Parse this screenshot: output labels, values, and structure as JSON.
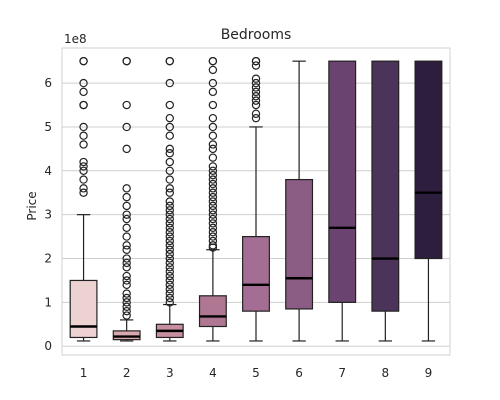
{
  "chart_data": {
    "type": "box",
    "title": "Bedrooms",
    "xlabel": "",
    "ylabel": "Price",
    "y_multiplier_label": "1e8",
    "y_unit_scale": 100000000,
    "ylim": [
      -0.2,
      6.8
    ],
    "yticks": [
      0,
      1,
      2,
      3,
      4,
      5,
      6
    ],
    "grid": true,
    "categories": [
      "1",
      "2",
      "3",
      "4",
      "5",
      "6",
      "7",
      "8",
      "9"
    ],
    "boxes": [
      {
        "category": "1",
        "q1": 0.2,
        "median": 0.45,
        "q3": 1.5,
        "whisker_low": 0.12,
        "whisker_high": 3.0,
        "color": "#ecd2d1",
        "outliers": [
          3.5,
          3.6,
          3.8,
          4.0,
          4.1,
          4.2,
          4.6,
          4.8,
          5.0,
          5.5,
          5.5,
          5.8,
          6.0,
          6.5,
          6.5
        ]
      },
      {
        "category": "2",
        "q1": 0.15,
        "median": 0.22,
        "q3": 0.35,
        "whisker_low": 0.12,
        "whisker_high": 0.6,
        "color": "#d9a7ad",
        "outliers": [
          0.7,
          0.8,
          0.9,
          1.0,
          1.1,
          1.2,
          1.4,
          1.5,
          1.6,
          1.8,
          1.9,
          2.0,
          2.2,
          2.3,
          2.5,
          2.7,
          2.9,
          3.0,
          3.2,
          3.4,
          3.6,
          4.5,
          5.0,
          5.5,
          6.5,
          6.5
        ]
      },
      {
        "category": "3",
        "q1": 0.2,
        "median": 0.35,
        "q3": 0.5,
        "whisker_low": 0.12,
        "whisker_high": 0.95,
        "color": "#c68e9e",
        "outliers": [
          1.0,
          1.1,
          1.2,
          1.3,
          1.4,
          1.5,
          1.6,
          1.7,
          1.8,
          1.9,
          2.0,
          2.1,
          2.2,
          2.3,
          2.4,
          2.5,
          2.6,
          2.7,
          2.8,
          2.9,
          3.0,
          3.1,
          3.2,
          3.3,
          3.5,
          3.6,
          3.8,
          4.0,
          4.2,
          4.4,
          4.5,
          4.8,
          5.0,
          5.2,
          5.5,
          6.0,
          6.5,
          6.5
        ]
      },
      {
        "category": "4",
        "q1": 0.45,
        "median": 0.68,
        "q3": 1.15,
        "whisker_low": 0.12,
        "whisker_high": 2.2,
        "color": "#b07793",
        "outliers": [
          2.25,
          2.3,
          2.4,
          2.5,
          2.6,
          2.7,
          2.8,
          2.9,
          3.0,
          3.1,
          3.2,
          3.3,
          3.4,
          3.5,
          3.6,
          3.7,
          3.8,
          3.9,
          4.0,
          4.1,
          4.3,
          4.5,
          4.6,
          4.8,
          5.0,
          5.2,
          5.5,
          5.8,
          6.0,
          6.3,
          6.5,
          6.5
        ]
      },
      {
        "category": "5",
        "q1": 0.8,
        "median": 1.4,
        "q3": 2.5,
        "whisker_low": 0.12,
        "whisker_high": 5.0,
        "color": "#a46e94",
        "outliers": [
          5.2,
          5.3,
          5.5,
          5.6,
          5.7,
          5.8,
          5.9,
          6.0,
          6.1,
          6.4,
          6.5,
          6.5
        ]
      },
      {
        "category": "6",
        "q1": 0.85,
        "median": 1.55,
        "q3": 3.8,
        "whisker_low": 0.12,
        "whisker_high": 6.5,
        "color": "#8c5d84",
        "outliers": []
      },
      {
        "category": "7",
        "q1": 1.0,
        "median": 2.7,
        "q3": 6.5,
        "whisker_low": 0.12,
        "whisker_high": 6.5,
        "color": "#6b4370",
        "outliers": []
      },
      {
        "category": "8",
        "q1": 0.8,
        "median": 2.0,
        "q3": 6.5,
        "whisker_low": 0.12,
        "whisker_high": 6.5,
        "color": "#4c3359",
        "outliers": []
      },
      {
        "category": "9",
        "q1": 2.0,
        "median": 3.5,
        "q3": 6.5,
        "whisker_low": 0.12,
        "whisker_high": 6.5,
        "color": "#2c1e3c",
        "outliers": []
      }
    ]
  }
}
